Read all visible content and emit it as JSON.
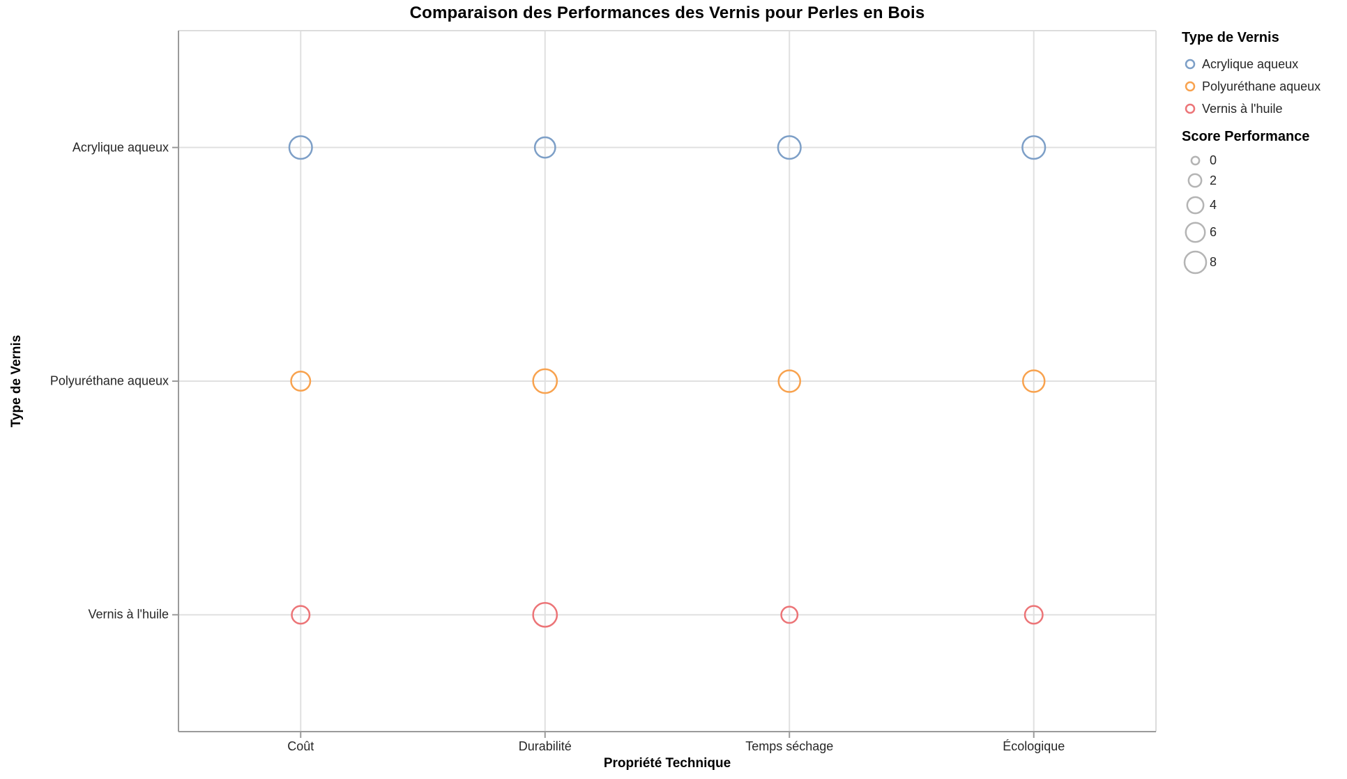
{
  "chart_data": {
    "type": "scatter",
    "title": "Comparaison des Performances des Vernis pour Perles en Bois",
    "x": {
      "label": "Propriété Technique",
      "categories": [
        "Coût",
        "Durabilité",
        "Temps séchage",
        "Écologique"
      ]
    },
    "y": {
      "label": "Type de Vernis",
      "categories": [
        "Acrylique aqueux",
        "Polyuréthane aqueux",
        "Vernis à l'huile"
      ]
    },
    "series": [
      {
        "name": "Acrylique aqueux",
        "color": "#7d9fc7",
        "values": [
          9,
          7,
          9,
          9
        ]
      },
      {
        "name": "Polyuréthane aqueux",
        "color": "#f8a24e",
        "values": [
          6,
          10,
          8,
          8
        ]
      },
      {
        "name": "Vernis à l'huile",
        "color": "#ec7477",
        "values": [
          5,
          10,
          4,
          5
        ]
      }
    ],
    "color_encoding": {
      "field": "Type de Vernis"
    },
    "size_encoding": {
      "field": "Score Performance",
      "legend_ticks": [
        0,
        2,
        4,
        6,
        8
      ]
    },
    "grid": true,
    "legend_position": "top-right"
  },
  "styles": {
    "grid_color": "#e0e0e0",
    "frame_color": "#dcdcdc",
    "axis_color": "#9a9a9a",
    "size_legend_color": "#b4b4b4",
    "label_color": "#262626"
  }
}
